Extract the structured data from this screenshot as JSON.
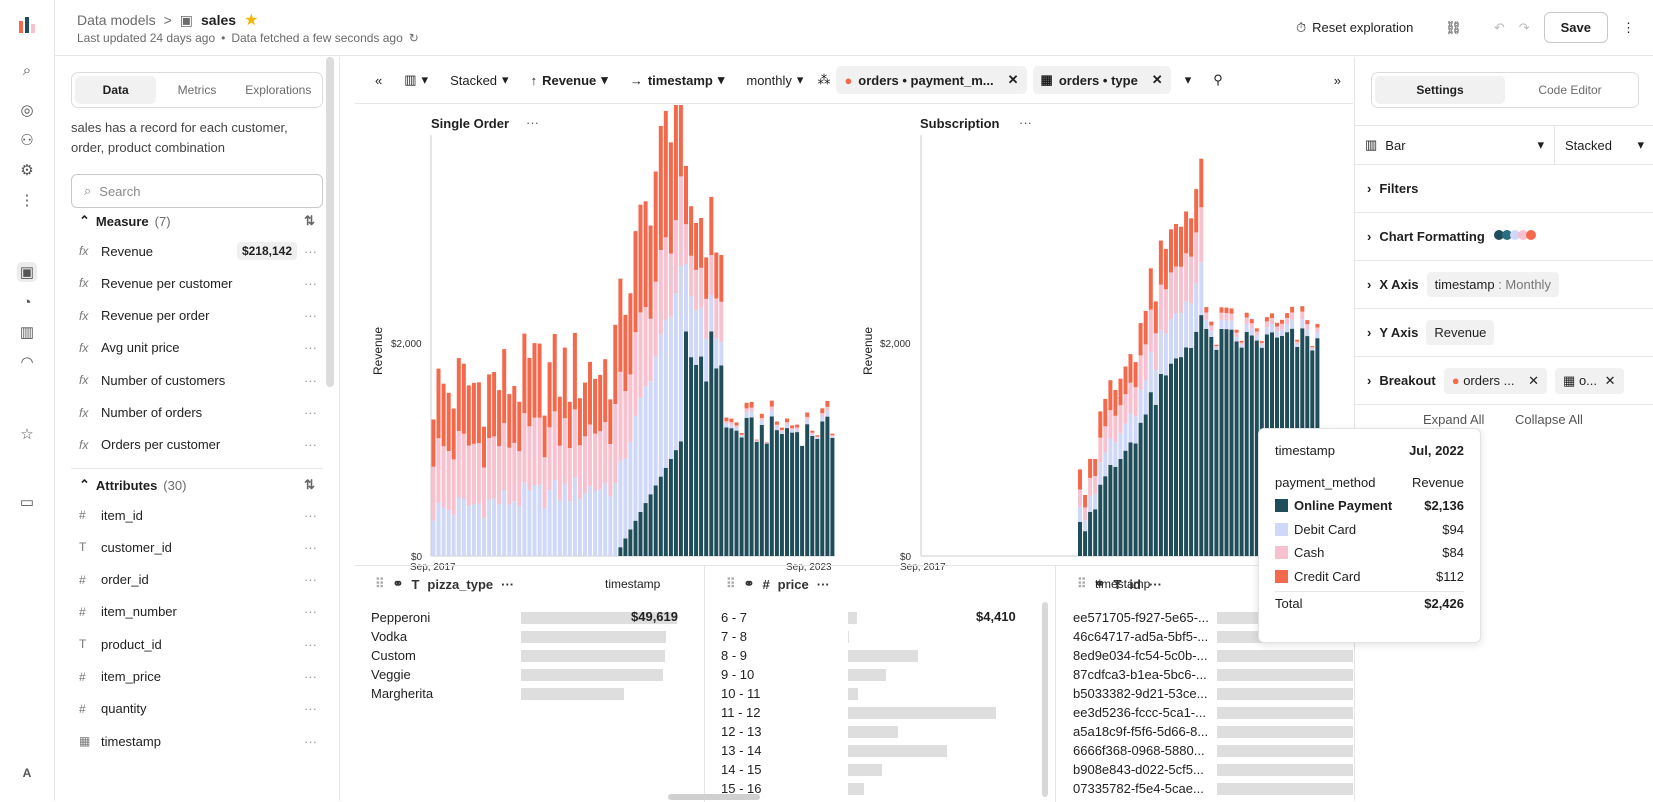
{
  "breadcrumb": {
    "parent": "Data models",
    "current": "sales",
    "sep": ">"
  },
  "subtitle": {
    "updated": "Last updated 24 days ago",
    "dot": "•",
    "fetched": "Data fetched a few seconds ago"
  },
  "topbar": {
    "reset": "Reset exploration",
    "save": "Save"
  },
  "left": {
    "tabs": [
      "Data",
      "Metrics",
      "Explorations"
    ],
    "description": "sales has a record for each customer, order, product combination",
    "search_placeholder": "Search",
    "measure_title": "Measure",
    "measure_count": "(7)",
    "measures": [
      {
        "label": "Revenue",
        "value": "$218,142"
      },
      {
        "label": "Revenue per customer"
      },
      {
        "label": "Revenue per order"
      },
      {
        "label": "Avg unit price"
      },
      {
        "label": "Number of customers"
      },
      {
        "label": "Number of orders"
      },
      {
        "label": "Orders per customer"
      }
    ],
    "attr_title": "Attributes",
    "attr_count": "(30)",
    "attributes": [
      {
        "label": "item_id",
        "icon": "#"
      },
      {
        "label": "customer_id",
        "icon": "T"
      },
      {
        "label": "order_id",
        "icon": "#"
      },
      {
        "label": "item_number",
        "icon": "#"
      },
      {
        "label": "product_id",
        "icon": "T"
      },
      {
        "label": "item_price",
        "icon": "#"
      },
      {
        "label": "quantity",
        "icon": "#"
      },
      {
        "label": "timestamp",
        "icon": "▦"
      }
    ]
  },
  "toolbar": {
    "stacked": "Stacked",
    "revenue": "Revenue",
    "timestamp": "timestamp",
    "monthly": "monthly",
    "breakout1": "orders • payment_m...",
    "breakout2": "orders • type"
  },
  "charts": [
    {
      "title": "Single Order",
      "ylabel": "Revenue",
      "xlabel": "timestamp",
      "x_start": "Sep, 2017",
      "x_end": "Sep, 2023",
      "y_tick": "$2,000",
      "y_zero": "$0"
    },
    {
      "title": "Subscription",
      "ylabel": "Revenue",
      "xlabel": "timestamp",
      "x_start": "Sep, 2017",
      "y_tick": "$2,000",
      "y_zero": "$0"
    }
  ],
  "chart_data": {
    "type": "bar",
    "stacking": "stacked",
    "series": [
      {
        "name": "Online Payment",
        "color": "#1f4e5a"
      },
      {
        "name": "Debit Card",
        "color": "#cfd8f7"
      },
      {
        "name": "Cash",
        "color": "#f7c1d0"
      },
      {
        "name": "Credit Card",
        "color": "#f4694b"
      }
    ],
    "tooltip": {
      "timestamp_label": "timestamp",
      "timestamp": "Jul, 2022",
      "col1": "payment_method",
      "col2": "Revenue",
      "rows": [
        {
          "name": "Online Payment",
          "value": "$2,136"
        },
        {
          "name": "Debit Card",
          "value": "$94"
        },
        {
          "name": "Cash",
          "value": "$84"
        },
        {
          "name": "Credit Card",
          "value": "$112"
        }
      ],
      "total_label": "Total",
      "total": "$2,426"
    }
  },
  "bottom": {
    "col1": {
      "title": "pizza_type",
      "top_value": "$49,619",
      "items": [
        "Pepperoni",
        "Vodka",
        "Custom",
        "Veggie",
        "Margherita"
      ],
      "fractions": [
        1,
        0.93,
        0.92,
        0.91,
        0.66
      ]
    },
    "col2": {
      "title": "price",
      "top_value": "$4,410",
      "items": [
        "6 - 7",
        "7 - 8",
        "8 - 9",
        "9 - 10",
        "10 - 11",
        "11 - 12",
        "12 - 13",
        "13 - 14",
        "14 - 15",
        "15 - 16"
      ],
      "fractions": [
        0.06,
        0.01,
        0.47,
        0.26,
        0.07,
        1,
        0.34,
        0.67,
        0.23,
        0.11
      ]
    },
    "col3": {
      "title": "id",
      "items": [
        "ee571705-f927-5e65-...",
        "46c64717-ad5a-5bf5-...",
        "8ed9e034-fc54-5c0b-...",
        "87cdfca3-b1ea-5bc6-...",
        "b5033382-9d21-53ce...",
        "ee3d5236-fccc-5ca1-...",
        "a5a18c9f-f5f6-5d66-8...",
        "6666f368-0968-5880...",
        "b908e843-d022-5cf5...",
        "07335782-f5e4-5cae..."
      ]
    }
  },
  "right": {
    "tabs": [
      "Settings",
      "Code Editor"
    ],
    "chart_type": "Bar",
    "stacking": "Stacked",
    "filters": "Filters",
    "formatting": "Chart Formatting",
    "xaxis": "X Axis",
    "xaxis_chip": "timestamp",
    "xaxis_chip2": ": Monthly",
    "yaxis": "Y Axis",
    "yaxis_chip": "Revenue",
    "breakout": "Breakout",
    "breakout_chip1": "orders ...",
    "breakout_chip2": "o...",
    "expand": "Expand All",
    "collapse": "Collapse All"
  }
}
